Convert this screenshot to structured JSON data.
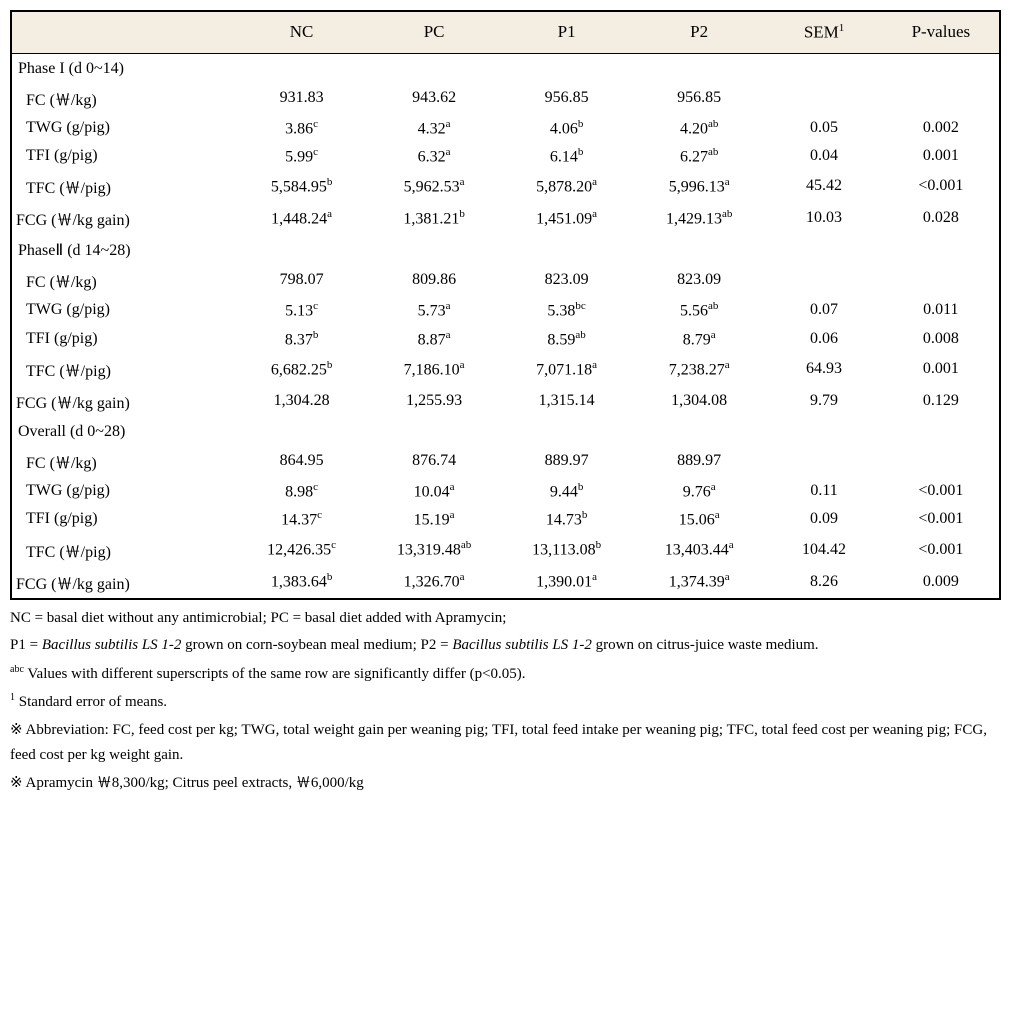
{
  "headers": [
    "",
    "NC",
    "PC",
    "P1",
    "P2",
    "SEM",
    "P-values"
  ],
  "header_sup": [
    "",
    "",
    "",
    "",
    "",
    "1",
    ""
  ],
  "col_widths": [
    "220px",
    "130px",
    "130px",
    "130px",
    "130px",
    "115px",
    "115px"
  ],
  "sections": [
    {
      "title": "Phase I (d 0~14)",
      "rows": [
        {
          "label": "FC (￦/kg)",
          "vals": [
            "931.83",
            "943.62",
            "956.85",
            "956.85",
            "",
            ""
          ],
          "sups": [
            "",
            "",
            "",
            "",
            "",
            ""
          ]
        },
        {
          "label": "TWG (g/pig)",
          "vals": [
            "3.86",
            "4.32",
            "4.06",
            "4.20",
            "0.05",
            "0.002"
          ],
          "sups": [
            "c",
            "a",
            "b",
            "ab",
            "",
            ""
          ]
        },
        {
          "label": "TFI (g/pig)",
          "vals": [
            "5.99",
            "6.32",
            "6.14",
            "6.27",
            "0.04",
            "0.001"
          ],
          "sups": [
            "c",
            "a",
            "b",
            "ab",
            "",
            ""
          ]
        },
        {
          "label": "TFC (￦/pig)",
          "vals": [
            "5,584.95",
            "5,962.53",
            "5,878.20",
            "5,996.13",
            "45.42",
            "<0.001"
          ],
          "sups": [
            "b",
            "a",
            "a",
            "a",
            "",
            ""
          ]
        },
        {
          "label": "FCG (￦/kg gain)",
          "indent2": true,
          "vals": [
            "1,448.24",
            "1,381.21",
            "1,451.09",
            "1,429.13",
            "10.03",
            "0.028"
          ],
          "sups": [
            "a",
            "b",
            "a",
            "ab",
            "",
            ""
          ]
        }
      ]
    },
    {
      "title": "PhaseⅡ (d 14~28)",
      "rows": [
        {
          "label": "FC (￦/kg)",
          "vals": [
            "798.07",
            "809.86",
            "823.09",
            "823.09",
            "",
            ""
          ],
          "sups": [
            "",
            "",
            "",
            "",
            "",
            ""
          ]
        },
        {
          "label": "TWG (g/pig)",
          "vals": [
            "5.13",
            "5.73",
            "5.38",
            "5.56",
            "0.07",
            "0.011"
          ],
          "sups": [
            "c",
            "a",
            "bc",
            "ab",
            "",
            ""
          ]
        },
        {
          "label": "TFI (g/pig)",
          "vals": [
            "8.37",
            "8.87",
            "8.59",
            "8.79",
            "0.06",
            "0.008"
          ],
          "sups": [
            "b",
            "a",
            "ab",
            "a",
            "",
            ""
          ]
        },
        {
          "label": "TFC (￦/pig)",
          "vals": [
            "6,682.25",
            "7,186.10",
            "7,071.18",
            "7,238.27",
            "64.93",
            "0.001"
          ],
          "sups": [
            "b",
            "a",
            "a",
            "a",
            "",
            ""
          ]
        },
        {
          "label": "FCG (￦/kg gain)",
          "indent2": true,
          "vals": [
            "1,304.28",
            "1,255.93",
            "1,315.14",
            "1,304.08",
            "9.79",
            "0.129"
          ],
          "sups": [
            "",
            "",
            "",
            "",
            "",
            ""
          ]
        }
      ]
    },
    {
      "title": "Overall (d 0~28)",
      "rows": [
        {
          "label": "FC (￦/kg)",
          "vals": [
            "864.95",
            "876.74",
            "889.97",
            "889.97",
            "",
            ""
          ],
          "sups": [
            "",
            "",
            "",
            "",
            "",
            ""
          ]
        },
        {
          "label": "TWG (g/pig)",
          "vals": [
            "8.98",
            "10.04",
            "9.44",
            "9.76",
            "0.11",
            "<0.001"
          ],
          "sups": [
            "c",
            "a",
            "b",
            "a",
            "",
            ""
          ]
        },
        {
          "label": "TFI (g/pig)",
          "vals": [
            "14.37",
            "15.19",
            "14.73",
            "15.06",
            "0.09",
            "<0.001"
          ],
          "sups": [
            "c",
            "a",
            "b",
            "a",
            "",
            ""
          ]
        },
        {
          "label": "TFC (￦/pig)",
          "vals": [
            "12,426.35",
            "13,319.48",
            "13,113.08",
            "13,403.44",
            "104.42",
            "<0.001"
          ],
          "sups": [
            "c",
            "ab",
            "b",
            "a",
            "",
            ""
          ]
        },
        {
          "label": "FCG (￦/kg gain)",
          "indent2": true,
          "vals": [
            "1,383.64",
            "1,326.70",
            "1,390.01",
            "1,374.39",
            "8.26",
            "0.009"
          ],
          "sups": [
            "b",
            "a",
            "a",
            "a",
            "",
            ""
          ]
        }
      ]
    }
  ],
  "footnotes": {
    "f1": "NC = basal diet without any antimicrobial; PC = basal diet added with Apramycin;",
    "f2_pre": "P1 = ",
    "f2_it1": "Bacillus subtilis LS 1-2",
    "f2_mid": " grown on corn-soybean meal medium; P2 = ",
    "f2_it2": "Bacillus subtilis LS 1-2",
    "f2_end": " grown on citrus-juice waste medium.",
    "f3_sup": "abc",
    "f3": " Values with different superscripts of the same row are significantly differ (p<0.05).",
    "f4_sup": "1",
    "f4": " Standard error of means.",
    "f5": "※ Abbreviation: FC, feed cost per kg; TWG, total weight gain per weaning pig; TFI, total feed intake per weaning pig; TFC, total feed cost per weaning pig; FCG, feed cost per kg weight gain.",
    "f6": "※ Apramycin ￦8,300/kg; Citrus peel extracts, ￦6,000/kg"
  }
}
